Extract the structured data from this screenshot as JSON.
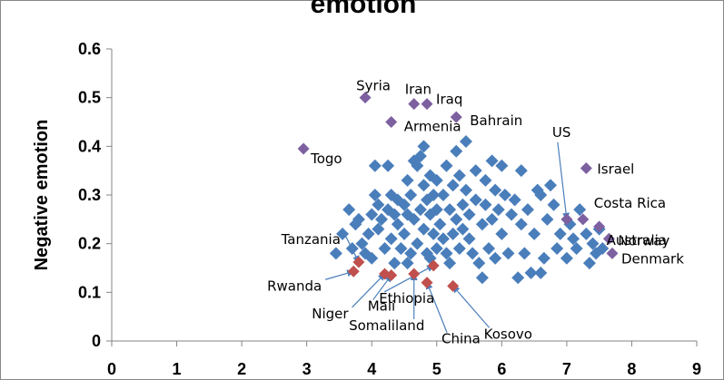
{
  "chart_data": {
    "type": "scatter",
    "title": "emotion",
    "ylabel": "Negative emotion",
    "xlabel": "",
    "xlim": [
      0,
      9
    ],
    "ylim": [
      0,
      0.6
    ],
    "xticks": [
      0,
      1,
      2,
      3,
      4,
      5,
      6,
      7,
      8,
      9
    ],
    "yticks": [
      "0",
      "0.1",
      "0.2",
      "0.3",
      "0.4",
      "0.5",
      "0.6"
    ],
    "grid": false,
    "legend": "none",
    "colors": {
      "default": "#4a7ebb",
      "high": "#7d60a0",
      "low": "#c0504d",
      "arrow": "#4a7ebb",
      "axis": "#868686"
    },
    "labeled_points": [
      {
        "label": "Syria",
        "x": 3.9,
        "y": 0.5,
        "group": "high"
      },
      {
        "label": "Iran",
        "x": 4.65,
        "y": 0.487,
        "group": "high"
      },
      {
        "label": "Iraq",
        "x": 4.85,
        "y": 0.487,
        "group": "high"
      },
      {
        "label": "Bahrain",
        "x": 5.3,
        "y": 0.46,
        "group": "high"
      },
      {
        "label": "Armenia",
        "x": 4.3,
        "y": 0.45,
        "group": "high"
      },
      {
        "label": "Togo",
        "x": 2.95,
        "y": 0.395,
        "group": "high"
      },
      {
        "label": "Israel",
        "x": 7.3,
        "y": 0.355,
        "group": "high"
      },
      {
        "label": "US",
        "x": 7.0,
        "y": 0.25,
        "group": "high"
      },
      {
        "label": "Costa Rica",
        "x": 7.25,
        "y": 0.25,
        "group": "high"
      },
      {
        "label": "Australia",
        "x": 7.5,
        "y": 0.235,
        "group": "high"
      },
      {
        "label": "Norway",
        "x": 7.65,
        "y": 0.21,
        "group": "high"
      },
      {
        "label": "Denmark",
        "x": 7.7,
        "y": 0.18,
        "group": "high"
      },
      {
        "label": "Tanzania",
        "x": 3.8,
        "y": 0.162,
        "group": "low"
      },
      {
        "label": "Rwanda",
        "x": 3.72,
        "y": 0.143,
        "group": "low"
      },
      {
        "label": "Niger",
        "x": 4.2,
        "y": 0.138,
        "group": "low"
      },
      {
        "label": "Mali",
        "x": 4.3,
        "y": 0.135,
        "group": "low"
      },
      {
        "label": "Somaliland",
        "x": 4.65,
        "y": 0.138,
        "group": "low"
      },
      {
        "label": "Ethiopia",
        "x": 4.95,
        "y": 0.155,
        "group": "low"
      },
      {
        "label": "China",
        "x": 4.85,
        "y": 0.12,
        "group": "low"
      },
      {
        "label": "Kosovo",
        "x": 5.25,
        "y": 0.113,
        "group": "low"
      }
    ],
    "points": [
      [
        3.65,
        0.27
      ],
      [
        3.7,
        0.19
      ],
      [
        3.75,
        0.24
      ],
      [
        3.8,
        0.25
      ],
      [
        3.85,
        0.2
      ],
      [
        3.9,
        0.18
      ],
      [
        3.95,
        0.22
      ],
      [
        4.0,
        0.26
      ],
      [
        4.0,
        0.17
      ],
      [
        4.05,
        0.3
      ],
      [
        4.05,
        0.36
      ],
      [
        4.1,
        0.28
      ],
      [
        4.1,
        0.23
      ],
      [
        4.15,
        0.25
      ],
      [
        4.2,
        0.19
      ],
      [
        4.25,
        0.27
      ],
      [
        4.25,
        0.36
      ],
      [
        4.3,
        0.3
      ],
      [
        4.3,
        0.21
      ],
      [
        4.35,
        0.26
      ],
      [
        4.4,
        0.29
      ],
      [
        4.4,
        0.24
      ],
      [
        4.45,
        0.19
      ],
      [
        4.5,
        0.28
      ],
      [
        4.5,
        0.22
      ],
      [
        4.55,
        0.33
      ],
      [
        4.55,
        0.26
      ],
      [
        4.6,
        0.18
      ],
      [
        4.6,
        0.3
      ],
      [
        4.65,
        0.37
      ],
      [
        4.65,
        0.25
      ],
      [
        4.7,
        0.36
      ],
      [
        4.7,
        0.2
      ],
      [
        4.75,
        0.38
      ],
      [
        4.75,
        0.27
      ],
      [
        4.8,
        0.4
      ],
      [
        4.8,
        0.32
      ],
      [
        4.8,
        0.23
      ],
      [
        4.85,
        0.29
      ],
      [
        4.85,
        0.18
      ],
      [
        4.9,
        0.34
      ],
      [
        4.9,
        0.26
      ],
      [
        4.9,
        0.17
      ],
      [
        4.95,
        0.3
      ],
      [
        4.95,
        0.22
      ],
      [
        5.0,
        0.33
      ],
      [
        5.0,
        0.27
      ],
      [
        5.0,
        0.19
      ],
      [
        5.05,
        0.24
      ],
      [
        5.1,
        0.3
      ],
      [
        5.1,
        0.21
      ],
      [
        5.15,
        0.36
      ],
      [
        5.15,
        0.18
      ],
      [
        5.2,
        0.27
      ],
      [
        5.25,
        0.32
      ],
      [
        5.25,
        0.22
      ],
      [
        5.3,
        0.39
      ],
      [
        5.3,
        0.25
      ],
      [
        5.35,
        0.34
      ],
      [
        5.35,
        0.19
      ],
      [
        5.4,
        0.28
      ],
      [
        5.4,
        0.23
      ],
      [
        5.45,
        0.41
      ],
      [
        5.45,
        0.31
      ],
      [
        5.5,
        0.26
      ],
      [
        5.5,
        0.21
      ],
      [
        5.55,
        0.18
      ],
      [
        5.6,
        0.35
      ],
      [
        5.6,
        0.29
      ],
      [
        5.65,
        0.16
      ],
      [
        5.7,
        0.24
      ],
      [
        5.7,
        0.13
      ],
      [
        5.75,
        0.28
      ],
      [
        5.75,
        0.33
      ],
      [
        5.8,
        0.19
      ],
      [
        5.85,
        0.37
      ],
      [
        5.85,
        0.25
      ],
      [
        5.9,
        0.31
      ],
      [
        5.95,
        0.27
      ],
      [
        6.0,
        0.36
      ],
      [
        6.0,
        0.22
      ],
      [
        6.05,
        0.3
      ],
      [
        6.1,
        0.18
      ],
      [
        6.15,
        0.26
      ],
      [
        6.2,
        0.29
      ],
      [
        6.25,
        0.13
      ],
      [
        6.3,
        0.35
      ],
      [
        6.3,
        0.24
      ],
      [
        6.35,
        0.18
      ],
      [
        6.4,
        0.27
      ],
      [
        6.45,
        0.14
      ],
      [
        6.5,
        0.22
      ],
      [
        6.55,
        0.31
      ],
      [
        6.6,
        0.3
      ],
      [
        6.65,
        0.17
      ],
      [
        6.7,
        0.25
      ],
      [
        6.75,
        0.32
      ],
      [
        6.8,
        0.28
      ],
      [
        6.85,
        0.19
      ],
      [
        6.9,
        0.22
      ],
      [
        7.0,
        0.17
      ],
      [
        7.05,
        0.24
      ],
      [
        7.1,
        0.21
      ],
      [
        7.15,
        0.19
      ],
      [
        7.2,
        0.27
      ],
      [
        7.3,
        0.22
      ],
      [
        7.35,
        0.16
      ],
      [
        7.4,
        0.2
      ],
      [
        7.45,
        0.18
      ],
      [
        7.5,
        0.23
      ],
      [
        7.55,
        0.19
      ],
      [
        3.45,
        0.18
      ],
      [
        3.55,
        0.22
      ],
      [
        4.35,
        0.16
      ],
      [
        5.9,
        0.17
      ],
      [
        6.6,
        0.14
      ],
      [
        5.2,
        0.16
      ],
      [
        4.55,
        0.16
      ]
    ]
  }
}
